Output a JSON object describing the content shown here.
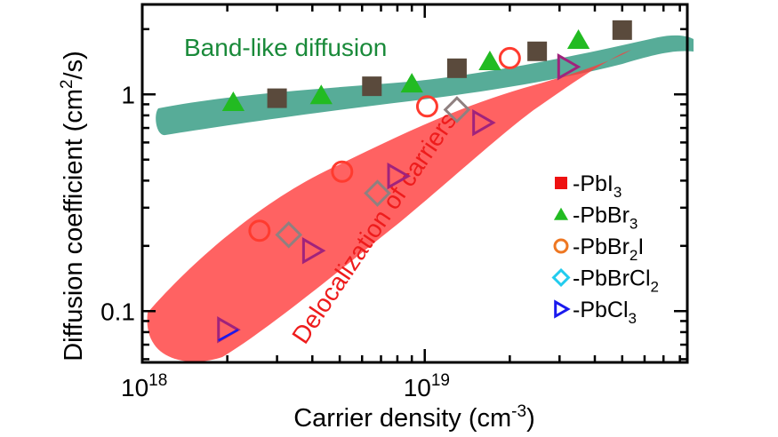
{
  "chart_data": {
    "type": "scatter",
    "x_scale": "log",
    "y_scale": "log",
    "xlim": [
      1e+18,
      8.5e+19
    ],
    "ylim": [
      0.058,
      2.6
    ],
    "xlabel": {
      "main": "Carrier density (cm",
      "sup": "-3",
      "tail": ")"
    },
    "ylabel": {
      "main": "Diffusion coefficient (cm",
      "sup": "2",
      "tail": "/s)"
    },
    "x_ticks": [
      {
        "value": 1e+18,
        "base": "10",
        "exp": "18"
      },
      {
        "value": 1e+19,
        "base": "10",
        "exp": "19"
      }
    ],
    "y_ticks": [
      {
        "value": 0.1,
        "label": "0.1"
      },
      {
        "value": 1,
        "label": "1"
      }
    ],
    "legend_position": "right",
    "annotations": {
      "band": {
        "text": "Band-like diffusion",
        "color": "#1a8a3a"
      },
      "deloc": {
        "text": "Delocalization of carriers",
        "color": "#ee1c1c"
      }
    },
    "bands": {
      "band_like": {
        "color": "#3a9e86",
        "opacity": 0.85
      },
      "delocalization": {
        "color": "#ff3b3b",
        "opacity": 0.8
      }
    },
    "series": [
      {
        "name": "-PbI3",
        "label_parts": {
          "pre": "-PbI",
          "sub": "3",
          "post": ""
        },
        "marker": "square",
        "color": "#5a4a3c",
        "legend_color": "#ee1111",
        "points": [
          [
            3e+18,
            0.96
          ],
          [
            6.5e+18,
            1.09
          ],
          [
            1.3e+19,
            1.32
          ],
          [
            2.5e+19,
            1.58
          ],
          [
            5e+19,
            1.98
          ]
        ]
      },
      {
        "name": "-PbBr3",
        "label_parts": {
          "pre": "-PbBr",
          "sub": "3",
          "post": ""
        },
        "marker": "triangle-up",
        "color": "#22bb22",
        "legend_color": "#22bb22",
        "points": [
          [
            2.1e+18,
            0.92
          ],
          [
            4.3e+18,
            0.99
          ],
          [
            9e+18,
            1.12
          ],
          [
            1.7e+19,
            1.42
          ],
          [
            3.5e+19,
            1.78
          ]
        ]
      },
      {
        "name": "-PbBr2I",
        "label_parts": {
          "pre": "-PbBr",
          "sub": "2",
          "post": "I"
        },
        "marker": "circle-open",
        "color": "#ff3b2f",
        "legend_color": "#ee7722",
        "points": [
          [
            2.6e+18,
            0.235
          ],
          [
            5.1e+18,
            0.44
          ],
          [
            1.02e+19,
            0.88
          ],
          [
            2e+19,
            1.47
          ]
        ]
      },
      {
        "name": "-PbBrCl2",
        "label_parts": {
          "pre": "-PbBrCl",
          "sub": "2",
          "post": ""
        },
        "marker": "diamond-open",
        "color": "#8f8080",
        "legend_color": "#22ccee",
        "points": [
          [
            3.3e+18,
            0.225
          ],
          [
            6.8e+18,
            0.35
          ],
          [
            1.3e+19,
            0.85
          ]
        ]
      },
      {
        "name": "-PbCl3",
        "label_parts": {
          "pre": "-PbCl",
          "sub": "3",
          "post": ""
        },
        "marker": "triangle-right-open",
        "color": "#a0237c",
        "legend_color": "#1a1aee",
        "points": [
          [
            2e+18,
            0.082
          ],
          [
            4e+18,
            0.19
          ],
          [
            8e+18,
            0.42
          ],
          [
            1.6e+19,
            0.74
          ],
          [
            3.2e+19,
            1.34
          ]
        ]
      }
    ]
  }
}
